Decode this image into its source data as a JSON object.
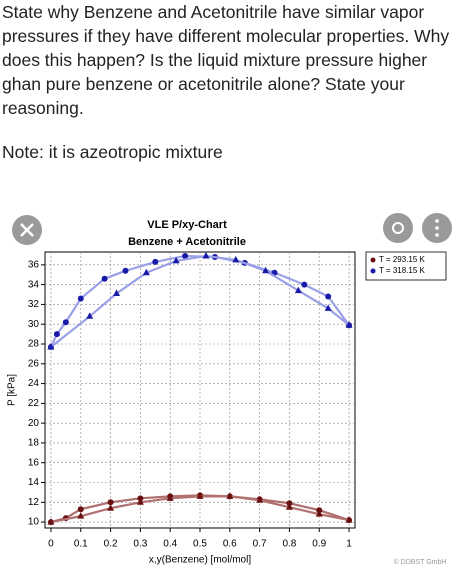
{
  "question": {
    "lines": [
      "State why Benzene and Acetonitrile have similar vapor",
      "pressures if they have different molecular properties. Why",
      "does this happen? Is the liquid mixture pressure higher",
      "ghan pure benzene or acetonitrile alone? State your",
      "reasoning."
    ],
    "note": "Note: it is azeotropic mixture"
  },
  "chart_data": {
    "type": "scatter",
    "title": "VLE P/xy-Chart",
    "subtitle": "Benzene + Acetonitrile",
    "x_label": "x,y(Benzene) [mol/mol]",
    "y_label": "P [kPa]",
    "watermark": "© DDBST GmbH",
    "xlim": [
      -0.02,
      1.02
    ],
    "ylim": [
      9.4,
      37.3
    ],
    "xticks": [
      0,
      0.1,
      0.2,
      0.3,
      0.4,
      0.5,
      0.6,
      0.7,
      0.8,
      0.9,
      1
    ],
    "yticks": [
      10,
      12,
      14,
      16,
      18,
      20,
      22,
      24,
      26,
      28,
      30,
      32,
      34,
      36
    ],
    "grid": true,
    "legend": "upper right",
    "series": [
      {
        "name": "T = 293.15 K",
        "color": "#6b1010",
        "bubble": {
          "x": [
            0,
            0.05,
            0.1,
            0.2,
            0.3,
            0.4,
            0.5,
            0.6,
            0.7,
            0.8,
            0.9,
            1
          ],
          "values": [
            10.0,
            10.4,
            11.3,
            12.0,
            12.4,
            12.6,
            12.7,
            12.6,
            12.3,
            11.9,
            11.2,
            10.2
          ]
        },
        "dew": {
          "x": [
            0,
            0.1,
            0.2,
            0.3,
            0.4,
            0.5,
            0.6,
            0.7,
            0.8,
            0.9,
            1
          ],
          "values": [
            10.0,
            10.6,
            11.4,
            12.0,
            12.4,
            12.6,
            12.6,
            12.2,
            11.5,
            10.8,
            10.2
          ]
        }
      },
      {
        "name": "T = 318.15 K",
        "color": "#1a1aa8",
        "bubble": {
          "x": [
            0,
            0.02,
            0.05,
            0.1,
            0.18,
            0.25,
            0.35,
            0.45,
            0.55,
            0.65,
            0.75,
            0.85,
            0.93,
            1
          ],
          "values": [
            27.7,
            29.0,
            30.2,
            32.6,
            34.6,
            35.4,
            36.3,
            36.9,
            36.8,
            36.2,
            35.2,
            34.0,
            32.8,
            29.9
          ]
        },
        "dew": {
          "x": [
            0,
            0.13,
            0.22,
            0.32,
            0.42,
            0.52,
            0.62,
            0.72,
            0.83,
            0.93,
            1
          ],
          "values": [
            27.7,
            30.8,
            33.1,
            35.2,
            36.4,
            36.9,
            36.5,
            35.4,
            33.4,
            31.6,
            29.9
          ]
        }
      }
    ]
  }
}
